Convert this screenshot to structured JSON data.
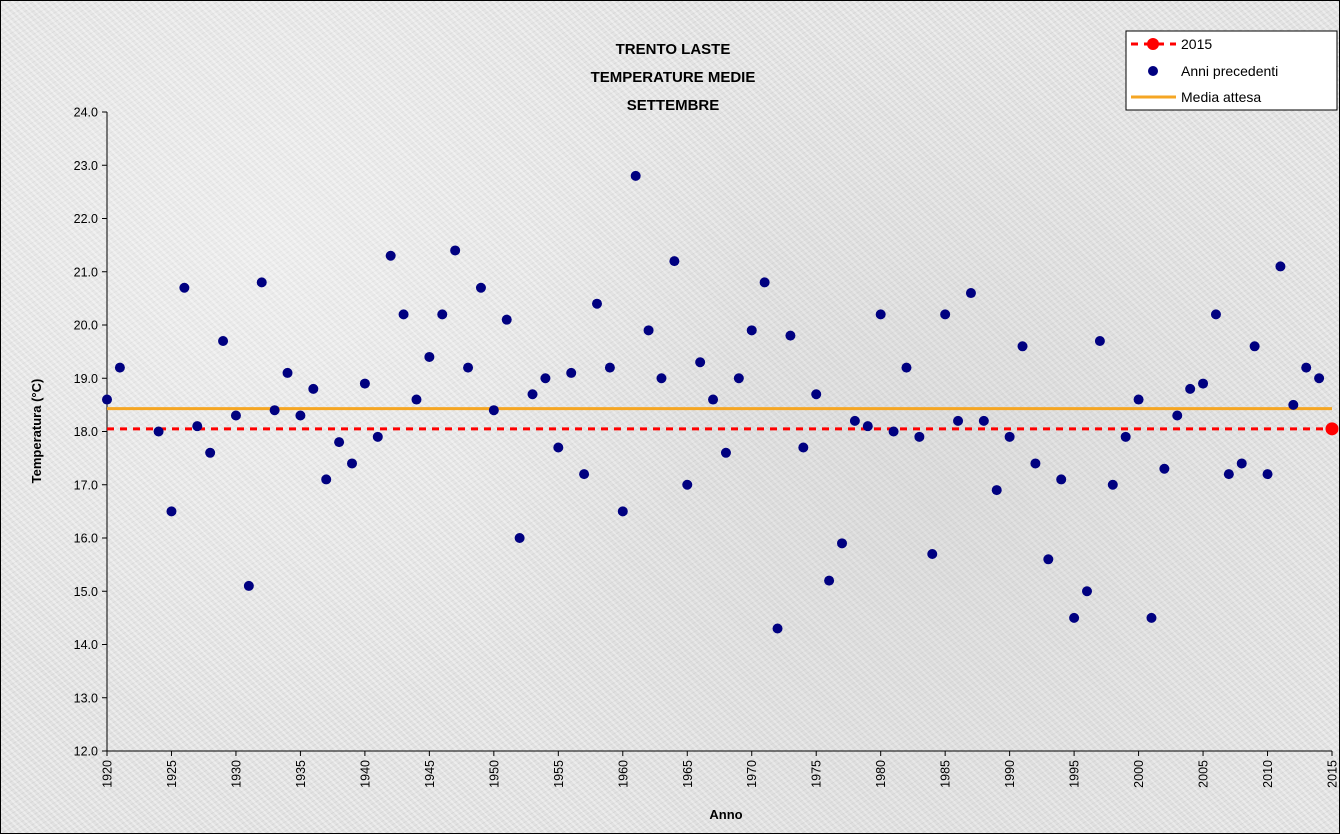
{
  "chart_data": {
    "type": "scatter",
    "title": [
      "TRENTO LASTE",
      "TEMPERATURE MEDIE",
      "SETTEMBRE"
    ],
    "xlabel": "Anno",
    "ylabel": "Temperatura (°C)",
    "xlim": [
      1920,
      2015
    ],
    "ylim": [
      12.0,
      24.0
    ],
    "x_ticks": [
      "1920",
      "1925",
      "1930",
      "1935",
      "1940",
      "1945",
      "1950",
      "1955",
      "1960",
      "1965",
      "1970",
      "1975",
      "1980",
      "1985",
      "1990",
      "1995",
      "2000",
      "2005",
      "2010",
      "2015"
    ],
    "y_ticks": [
      "12.0",
      "13.0",
      "14.0",
      "15.0",
      "16.0",
      "17.0",
      "18.0",
      "19.0",
      "20.0",
      "21.0",
      "22.0",
      "23.0",
      "24.0"
    ],
    "legend_position": "top-right",
    "legend": [
      {
        "label": "2015",
        "kind": "dashed-marker"
      },
      {
        "label": "Anni precedenti",
        "kind": "marker"
      },
      {
        "label": "Media attesa",
        "kind": "line"
      }
    ],
    "colors": {
      "current_year": "#ff0000",
      "previous_years": "#000080",
      "mean": "#f5a623"
    },
    "current_year": {
      "x": 2015,
      "y": 18.05
    },
    "mean_value": 18.43,
    "series": [
      {
        "name": "Anni precedenti",
        "points": [
          [
            1920,
            18.6
          ],
          [
            1921,
            19.2
          ],
          [
            1924,
            18.0
          ],
          [
            1925,
            16.5
          ],
          [
            1926,
            20.7
          ],
          [
            1927,
            18.1
          ],
          [
            1928,
            17.6
          ],
          [
            1929,
            19.7
          ],
          [
            1930,
            18.3
          ],
          [
            1931,
            15.1
          ],
          [
            1932,
            20.8
          ],
          [
            1933,
            18.4
          ],
          [
            1934,
            19.1
          ],
          [
            1935,
            18.3
          ],
          [
            1936,
            18.8
          ],
          [
            1937,
            17.1
          ],
          [
            1938,
            17.8
          ],
          [
            1939,
            17.4
          ],
          [
            1940,
            18.9
          ],
          [
            1941,
            17.9
          ],
          [
            1942,
            21.3
          ],
          [
            1943,
            20.2
          ],
          [
            1944,
            18.6
          ],
          [
            1945,
            19.4
          ],
          [
            1946,
            20.2
          ],
          [
            1947,
            21.4
          ],
          [
            1948,
            19.2
          ],
          [
            1949,
            20.7
          ],
          [
            1950,
            18.4
          ],
          [
            1951,
            20.1
          ],
          [
            1952,
            16.0
          ],
          [
            1953,
            18.7
          ],
          [
            1954,
            19.0
          ],
          [
            1955,
            17.7
          ],
          [
            1956,
            19.1
          ],
          [
            1957,
            17.2
          ],
          [
            1958,
            20.4
          ],
          [
            1959,
            19.2
          ],
          [
            1960,
            16.5
          ],
          [
            1961,
            22.8
          ],
          [
            1962,
            19.9
          ],
          [
            1963,
            19.0
          ],
          [
            1964,
            21.2
          ],
          [
            1965,
            17.0
          ],
          [
            1966,
            19.3
          ],
          [
            1967,
            18.6
          ],
          [
            1968,
            17.6
          ],
          [
            1969,
            19.0
          ],
          [
            1970,
            19.9
          ],
          [
            1971,
            20.8
          ],
          [
            1972,
            14.3
          ],
          [
            1973,
            19.8
          ],
          [
            1974,
            17.7
          ],
          [
            1975,
            18.7
          ],
          [
            1976,
            15.2
          ],
          [
            1977,
            15.9
          ],
          [
            1978,
            18.2
          ],
          [
            1979,
            18.1
          ],
          [
            1980,
            20.2
          ],
          [
            1981,
            18.0
          ],
          [
            1982,
            19.2
          ],
          [
            1983,
            17.9
          ],
          [
            1984,
            15.7
          ],
          [
            1985,
            20.2
          ],
          [
            1986,
            18.2
          ],
          [
            1987,
            20.6
          ],
          [
            1988,
            18.2
          ],
          [
            1989,
            16.9
          ],
          [
            1990,
            17.9
          ],
          [
            1991,
            19.6
          ],
          [
            1992,
            17.4
          ],
          [
            1993,
            15.6
          ],
          [
            1994,
            17.1
          ],
          [
            1995,
            14.5
          ],
          [
            1996,
            15.0
          ],
          [
            1997,
            19.7
          ],
          [
            1998,
            17.0
          ],
          [
            1999,
            17.9
          ],
          [
            2000,
            18.6
          ],
          [
            2001,
            14.5
          ],
          [
            2002,
            17.3
          ],
          [
            2003,
            18.3
          ],
          [
            2004,
            18.8
          ],
          [
            2005,
            18.9
          ],
          [
            2006,
            20.2
          ],
          [
            2007,
            17.2
          ],
          [
            2008,
            17.4
          ],
          [
            2009,
            19.6
          ],
          [
            2010,
            17.2
          ],
          [
            2011,
            21.1
          ],
          [
            2012,
            18.5
          ],
          [
            2013,
            19.2
          ],
          [
            2014,
            19.0
          ]
        ]
      }
    ]
  }
}
